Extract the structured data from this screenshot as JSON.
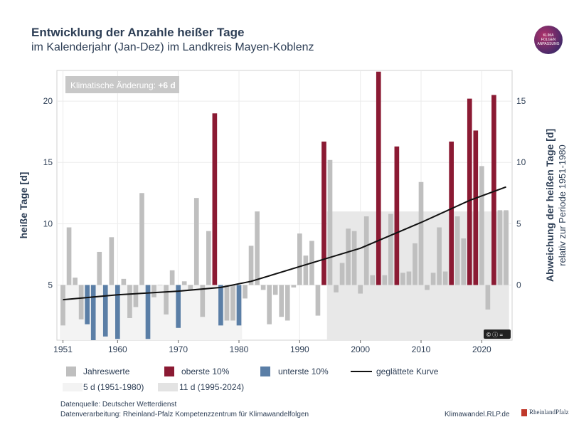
{
  "header": {
    "title": "Entwicklung der Anzahle heißer Tage",
    "subtitle": "im Kalenderjahr (Jan-Dez) im Landkreis Mayen-Koblenz",
    "logo_text": [
      "KLIMA",
      "FOLGEN",
      "ANPASSUNG"
    ]
  },
  "chart_data": {
    "type": "bar",
    "ylabel_left": "heiße Tage [d]",
    "ylabel_right": "Abweichung der heißen Tage [d]",
    "ylabel_right_sub": "relativ zur Periode 1951-1980",
    "xlim": [
      1950,
      2025
    ],
    "ylim": [
      0.5,
      22.5
    ],
    "baseline": 5,
    "right_axis_offset": 5,
    "x_ticks": [
      "1951",
      "1960",
      "1970",
      "1980",
      "1990",
      "2000",
      "2010",
      "2020"
    ],
    "x_tick_values": [
      1951,
      1960,
      1970,
      1980,
      1990,
      2000,
      2010,
      2020
    ],
    "y_ticks_left": [
      "5",
      "10",
      "15",
      "20"
    ],
    "y_tick_values_left": [
      5,
      10,
      15,
      20
    ],
    "y_ticks_right": [
      "0",
      "5",
      "10",
      "15"
    ],
    "y_tick_values_right": [
      0,
      5,
      10,
      15
    ],
    "grid": true,
    "annotation_prefix": "Klimatische Änderung: ",
    "annotation_value": "+6 d",
    "colors": {
      "normal": "#bfbfbf",
      "top": "#8b1a33",
      "bottom": "#5a7ea6",
      "smooth": "#111111",
      "period": "#ebebeb"
    },
    "series": [
      {
        "year": 1951,
        "value": 1.7,
        "cat": "normal"
      },
      {
        "year": 1952,
        "value": 9.7,
        "cat": "normal"
      },
      {
        "year": 1953,
        "value": 5.6,
        "cat": "normal"
      },
      {
        "year": 1954,
        "value": 2.2,
        "cat": "normal"
      },
      {
        "year": 1955,
        "value": 1.8,
        "cat": "bottom"
      },
      {
        "year": 1956,
        "value": 0.5,
        "cat": "bottom"
      },
      {
        "year": 1957,
        "value": 7.7,
        "cat": "normal"
      },
      {
        "year": 1958,
        "value": 0.8,
        "cat": "bottom"
      },
      {
        "year": 1959,
        "value": 8.9,
        "cat": "normal"
      },
      {
        "year": 1960,
        "value": 0.6,
        "cat": "bottom"
      },
      {
        "year": 1961,
        "value": 5.5,
        "cat": "normal"
      },
      {
        "year": 1962,
        "value": 2.3,
        "cat": "normal"
      },
      {
        "year": 1963,
        "value": 3.2,
        "cat": "normal"
      },
      {
        "year": 1964,
        "value": 12.5,
        "cat": "normal"
      },
      {
        "year": 1965,
        "value": 0.6,
        "cat": "bottom"
      },
      {
        "year": 1966,
        "value": 4.0,
        "cat": "normal"
      },
      {
        "year": 1967,
        "value": 5.0,
        "cat": "normal"
      },
      {
        "year": 1968,
        "value": 2.6,
        "cat": "normal"
      },
      {
        "year": 1969,
        "value": 6.2,
        "cat": "normal"
      },
      {
        "year": 1970,
        "value": 1.5,
        "cat": "bottom"
      },
      {
        "year": 1971,
        "value": 5.3,
        "cat": "normal"
      },
      {
        "year": 1972,
        "value": 4.6,
        "cat": "normal"
      },
      {
        "year": 1973,
        "value": 12.1,
        "cat": "normal"
      },
      {
        "year": 1974,
        "value": 2.4,
        "cat": "normal"
      },
      {
        "year": 1975,
        "value": 9.4,
        "cat": "normal"
      },
      {
        "year": 1976,
        "value": 19.0,
        "cat": "top"
      },
      {
        "year": 1977,
        "value": 1.7,
        "cat": "bottom"
      },
      {
        "year": 1978,
        "value": 2.1,
        "cat": "normal"
      },
      {
        "year": 1979,
        "value": 2.1,
        "cat": "normal"
      },
      {
        "year": 1980,
        "value": 1.7,
        "cat": "bottom"
      },
      {
        "year": 1981,
        "value": 3.9,
        "cat": "normal"
      },
      {
        "year": 1982,
        "value": 8.2,
        "cat": "normal"
      },
      {
        "year": 1983,
        "value": 11.0,
        "cat": "normal"
      },
      {
        "year": 1984,
        "value": 4.6,
        "cat": "normal"
      },
      {
        "year": 1985,
        "value": 1.8,
        "cat": "normal"
      },
      {
        "year": 1986,
        "value": 4.2,
        "cat": "normal"
      },
      {
        "year": 1987,
        "value": 2.4,
        "cat": "normal"
      },
      {
        "year": 1988,
        "value": 2.1,
        "cat": "normal"
      },
      {
        "year": 1989,
        "value": 4.8,
        "cat": "normal"
      },
      {
        "year": 1990,
        "value": 9.2,
        "cat": "normal"
      },
      {
        "year": 1991,
        "value": 7.4,
        "cat": "normal"
      },
      {
        "year": 1992,
        "value": 8.6,
        "cat": "normal"
      },
      {
        "year": 1993,
        "value": 2.5,
        "cat": "normal"
      },
      {
        "year": 1994,
        "value": 16.7,
        "cat": "top"
      },
      {
        "year": 1995,
        "value": 15.2,
        "cat": "normal"
      },
      {
        "year": 1996,
        "value": 4.4,
        "cat": "normal"
      },
      {
        "year": 1997,
        "value": 6.8,
        "cat": "normal"
      },
      {
        "year": 1998,
        "value": 9.6,
        "cat": "normal"
      },
      {
        "year": 1999,
        "value": 9.4,
        "cat": "normal"
      },
      {
        "year": 2000,
        "value": 4.3,
        "cat": "normal"
      },
      {
        "year": 2001,
        "value": 10.6,
        "cat": "normal"
      },
      {
        "year": 2002,
        "value": 5.8,
        "cat": "normal"
      },
      {
        "year": 2003,
        "value": 22.4,
        "cat": "top"
      },
      {
        "year": 2004,
        "value": 5.8,
        "cat": "normal"
      },
      {
        "year": 2005,
        "value": 10.8,
        "cat": "normal"
      },
      {
        "year": 2006,
        "value": 16.3,
        "cat": "top"
      },
      {
        "year": 2007,
        "value": 6.0,
        "cat": "normal"
      },
      {
        "year": 2008,
        "value": 6.1,
        "cat": "normal"
      },
      {
        "year": 2009,
        "value": 8.4,
        "cat": "normal"
      },
      {
        "year": 2010,
        "value": 13.4,
        "cat": "normal"
      },
      {
        "year": 2011,
        "value": 4.6,
        "cat": "normal"
      },
      {
        "year": 2012,
        "value": 6.0,
        "cat": "normal"
      },
      {
        "year": 2013,
        "value": 9.7,
        "cat": "normal"
      },
      {
        "year": 2014,
        "value": 6.1,
        "cat": "normal"
      },
      {
        "year": 2015,
        "value": 16.7,
        "cat": "top"
      },
      {
        "year": 2016,
        "value": 10.6,
        "cat": "normal"
      },
      {
        "year": 2017,
        "value": 8.8,
        "cat": "normal"
      },
      {
        "year": 2018,
        "value": 20.2,
        "cat": "top"
      },
      {
        "year": 2019,
        "value": 17.6,
        "cat": "top"
      },
      {
        "year": 2020,
        "value": 14.7,
        "cat": "normal"
      },
      {
        "year": 2021,
        "value": 3.0,
        "cat": "normal"
      },
      {
        "year": 2022,
        "value": 20.5,
        "cat": "top"
      },
      {
        "year": 2023,
        "value": 11.1,
        "cat": "normal"
      },
      {
        "year": 2024,
        "value": 11.1,
        "cat": "normal"
      }
    ],
    "smoothed_curve": [
      {
        "year": 1951,
        "value": 3.8
      },
      {
        "year": 1960,
        "value": 4.2
      },
      {
        "year": 1970,
        "value": 4.5
      },
      {
        "year": 1977,
        "value": 4.8
      },
      {
        "year": 1982,
        "value": 5.3
      },
      {
        "year": 1990,
        "value": 6.5
      },
      {
        "year": 2000,
        "value": 8.0
      },
      {
        "year": 2010,
        "value": 10.1
      },
      {
        "year": 2018,
        "value": 11.9
      },
      {
        "year": 2024,
        "value": 13.0
      }
    ],
    "periods": [
      {
        "start": 1951,
        "end": 1980,
        "value": 5
      },
      {
        "start": 1995,
        "end": 2024,
        "value": 11
      }
    ]
  },
  "legend": {
    "items": [
      {
        "label": "Jahreswerte",
        "color": "#bfbfbf",
        "kind": "box"
      },
      {
        "label": "oberste 10%",
        "color": "#8b1a33",
        "kind": "box"
      },
      {
        "label": "unterste 10%",
        "color": "#5a7ea6",
        "kind": "box"
      },
      {
        "label": "geglättete Kurve",
        "color": "#111111",
        "kind": "line"
      }
    ],
    "periods": [
      {
        "label": "5 d (1951-1980)",
        "color": "#f3f3f3"
      },
      {
        "label": "11 d (1995-2024)",
        "color": "#e3e3e3"
      }
    ]
  },
  "footer": {
    "source": "Datenquelle: Deutscher Wetterdienst",
    "processing": "Datenverarbeitung: Rheinland-Pfalz Kompetenzzentrum für Klimawandelfolgen",
    "website": "Klimawandel.RLP.de",
    "brand": "RheinlandPfalz"
  }
}
